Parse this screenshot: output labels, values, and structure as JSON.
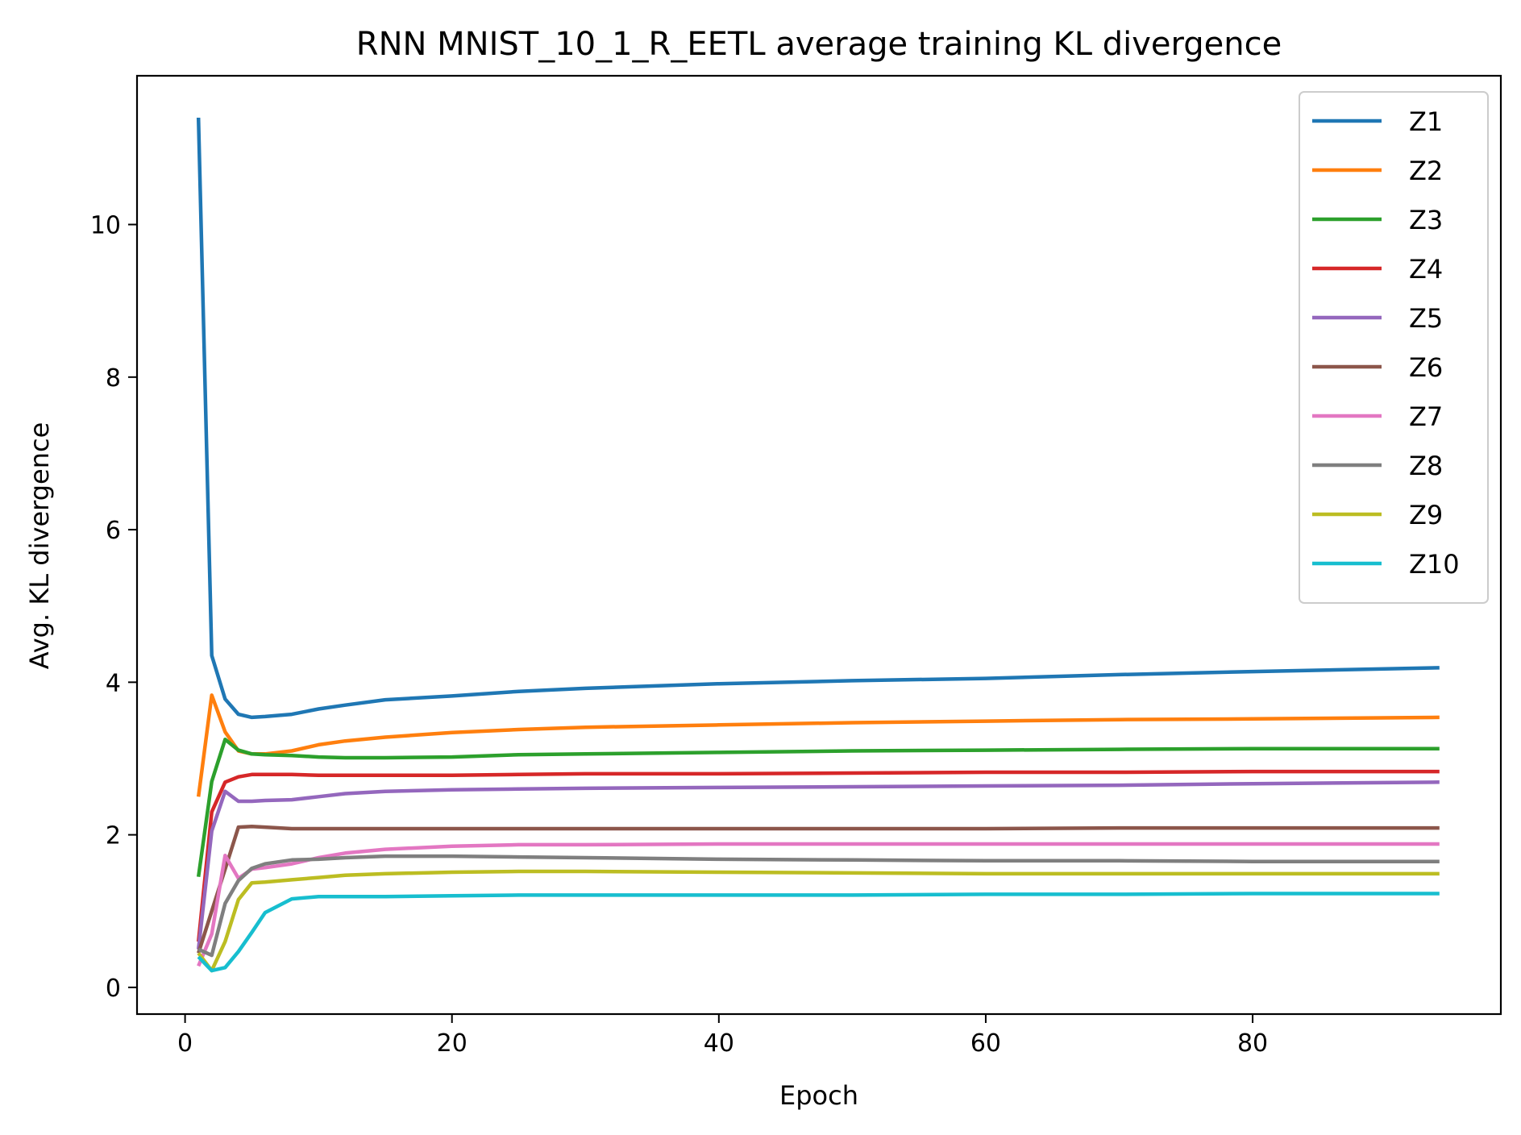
{
  "chart_data": {
    "type": "line",
    "title": "RNN MNIST_10_1_R_EETL average training KL divergence",
    "xlabel": "Epoch",
    "ylabel": "Avg. KL divergence",
    "xlim": [
      -3.6,
      98.6
    ],
    "ylim": [
      -0.35,
      11.95
    ],
    "xticks": [
      0,
      20,
      40,
      60,
      80
    ],
    "yticks": [
      0,
      2,
      4,
      6,
      8,
      10
    ],
    "grid": false,
    "legend_position": "upper-right",
    "x": [
      1,
      2,
      3,
      4,
      5,
      6,
      8,
      10,
      12,
      15,
      20,
      25,
      30,
      40,
      50,
      60,
      70,
      80,
      94
    ],
    "series": [
      {
        "name": "Z1",
        "color": "#1f77b4",
        "values": [
          11.4,
          4.35,
          3.78,
          3.58,
          3.54,
          3.55,
          3.58,
          3.65,
          3.7,
          3.77,
          3.82,
          3.88,
          3.92,
          3.98,
          4.02,
          4.05,
          4.1,
          4.14,
          4.19
        ]
      },
      {
        "name": "Z2",
        "color": "#ff7f0e",
        "values": [
          2.5,
          3.83,
          3.35,
          3.1,
          3.06,
          3.06,
          3.1,
          3.18,
          3.23,
          3.28,
          3.34,
          3.38,
          3.41,
          3.44,
          3.47,
          3.49,
          3.51,
          3.52,
          3.54
        ]
      },
      {
        "name": "Z3",
        "color": "#2ca02c",
        "values": [
          1.45,
          2.7,
          3.25,
          3.11,
          3.06,
          3.05,
          3.04,
          3.02,
          3.01,
          3.01,
          3.02,
          3.05,
          3.06,
          3.08,
          3.1,
          3.11,
          3.12,
          3.13,
          3.13
        ]
      },
      {
        "name": "Z4",
        "color": "#d62728",
        "values": [
          0.6,
          2.3,
          2.69,
          2.76,
          2.79,
          2.79,
          2.79,
          2.78,
          2.78,
          2.78,
          2.78,
          2.79,
          2.8,
          2.8,
          2.81,
          2.82,
          2.82,
          2.83,
          2.83
        ]
      },
      {
        "name": "Z5",
        "color": "#9467bd",
        "values": [
          0.5,
          2.05,
          2.57,
          2.44,
          2.44,
          2.45,
          2.46,
          2.5,
          2.54,
          2.57,
          2.59,
          2.6,
          2.61,
          2.62,
          2.63,
          2.64,
          2.65,
          2.67,
          2.69
        ]
      },
      {
        "name": "Z6",
        "color": "#8c564b",
        "values": [
          0.45,
          1.0,
          1.55,
          2.1,
          2.11,
          2.1,
          2.08,
          2.08,
          2.08,
          2.08,
          2.08,
          2.08,
          2.08,
          2.08,
          2.08,
          2.08,
          2.09,
          2.09,
          2.09
        ]
      },
      {
        "name": "Z7",
        "color": "#e377c2",
        "values": [
          0.28,
          0.7,
          1.73,
          1.43,
          1.55,
          1.57,
          1.62,
          1.7,
          1.76,
          1.81,
          1.85,
          1.87,
          1.87,
          1.88,
          1.88,
          1.88,
          1.88,
          1.88,
          1.88
        ]
      },
      {
        "name": "Z8",
        "color": "#7f7f7f",
        "values": [
          0.5,
          0.42,
          1.1,
          1.4,
          1.56,
          1.62,
          1.67,
          1.68,
          1.7,
          1.72,
          1.72,
          1.71,
          1.7,
          1.68,
          1.67,
          1.66,
          1.66,
          1.65,
          1.65
        ]
      },
      {
        "name": "Z9",
        "color": "#bcbd22",
        "values": [
          0.45,
          0.22,
          0.6,
          1.15,
          1.37,
          1.38,
          1.41,
          1.44,
          1.47,
          1.49,
          1.51,
          1.52,
          1.52,
          1.51,
          1.5,
          1.49,
          1.49,
          1.49,
          1.49
        ]
      },
      {
        "name": "Z10",
        "color": "#17becf",
        "values": [
          0.4,
          0.22,
          0.26,
          0.47,
          0.72,
          0.98,
          1.16,
          1.19,
          1.19,
          1.19,
          1.2,
          1.21,
          1.21,
          1.21,
          1.21,
          1.22,
          1.22,
          1.23,
          1.23
        ]
      }
    ]
  }
}
